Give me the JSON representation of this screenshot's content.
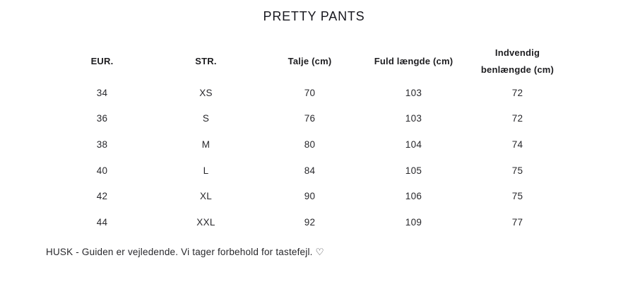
{
  "title": "PRETTY PANTS",
  "table": {
    "headers": [
      "EUR.",
      "STR.",
      "Talje (cm)",
      "Fuld længde (cm)",
      "Indvendig benlængde (cm)"
    ],
    "rows": [
      [
        "34",
        "XS",
        "70",
        "103",
        "72"
      ],
      [
        "36",
        "S",
        "76",
        "103",
        "72"
      ],
      [
        "38",
        "M",
        "80",
        "104",
        "74"
      ],
      [
        "40",
        "L",
        "84",
        "105",
        "75"
      ],
      [
        "42",
        "XL",
        "90",
        "106",
        "75"
      ],
      [
        "44",
        "XXL",
        "92",
        "109",
        "77"
      ]
    ]
  },
  "footer": "HUSK - Guiden er vejledende. Vi tager forbehold for tastefejl. ♡"
}
